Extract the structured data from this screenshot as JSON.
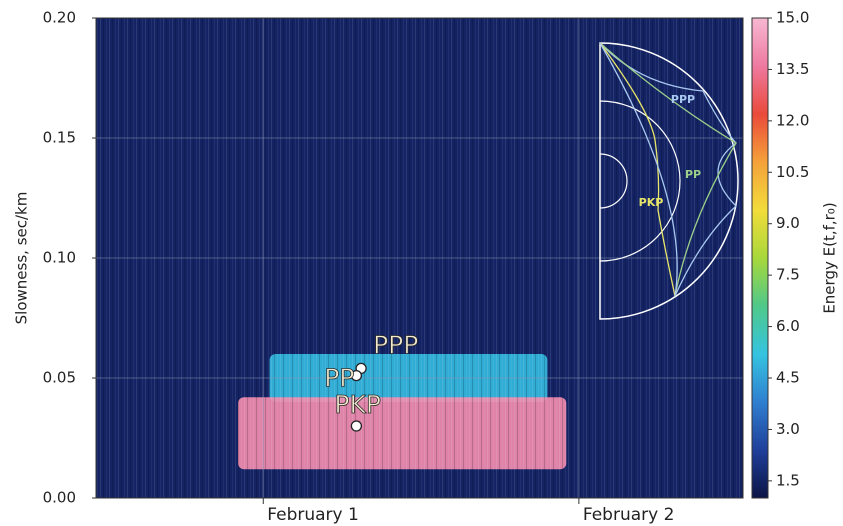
{
  "chart_data": {
    "type": "heatmap",
    "y_label": "Slowness, sec/km",
    "ylim": [
      0,
      0.2
    ],
    "yticks": [
      {
        "value": 0,
        "label": "0.00"
      },
      0.05,
      {
        "value": 0.1,
        "label": "0.10"
      },
      0.15,
      {
        "value": 0.2,
        "label": "0.20"
      }
    ],
    "xlim": [
      0.47,
      2.52
    ],
    "xticks": [
      {
        "value": 1,
        "label": "February 1"
      },
      {
        "value": 2,
        "label": "February 2"
      }
    ],
    "grid": true,
    "background_energy": 1.5,
    "regions": [
      {
        "x": [
          1.02,
          1.9
        ],
        "y": [
          0.04,
          0.06
        ],
        "energy": 5
      },
      {
        "x": [
          0.92,
          1.96
        ],
        "y": [
          0.012,
          0.042
        ],
        "energy": 14
      }
    ],
    "annotations": [
      {
        "label": "PPP",
        "x": 1.31,
        "y": 0.054
      },
      {
        "label": "PP",
        "x": 1.295,
        "y": 0.051
      },
      {
        "label": "PKP",
        "x": 1.295,
        "y": 0.03
      }
    ],
    "colorbar": {
      "label": "Energy  E(t,f,r₀)",
      "clim": [
        1,
        15
      ],
      "ticks": [
        1.5,
        {
          "value": 3,
          "label": "3.0"
        },
        4.5,
        {
          "value": 6,
          "label": "6.0"
        },
        7.5,
        {
          "value": 9,
          "label": "9.0"
        },
        10.5,
        {
          "value": 12,
          "label": "12.0"
        },
        13.5,
        {
          "value": 15,
          "label": "15.0"
        }
      ],
      "colormap": [
        "#0c1446",
        "#1f3f9a",
        "#2f7fd0",
        "#35c4e0",
        "#4fc88a",
        "#a8d83a",
        "#f2dc3a",
        "#f5a13a",
        "#ea4a3a",
        "#ee7aa0",
        "#f7b8d2"
      ]
    },
    "inset_labels": [
      {
        "label": "PPP",
        "color": "#a9c8f0"
      },
      {
        "label": "PP",
        "color": "#9ccf8a"
      },
      {
        "label": "PKP",
        "color": "#e8e66a"
      }
    ]
  }
}
